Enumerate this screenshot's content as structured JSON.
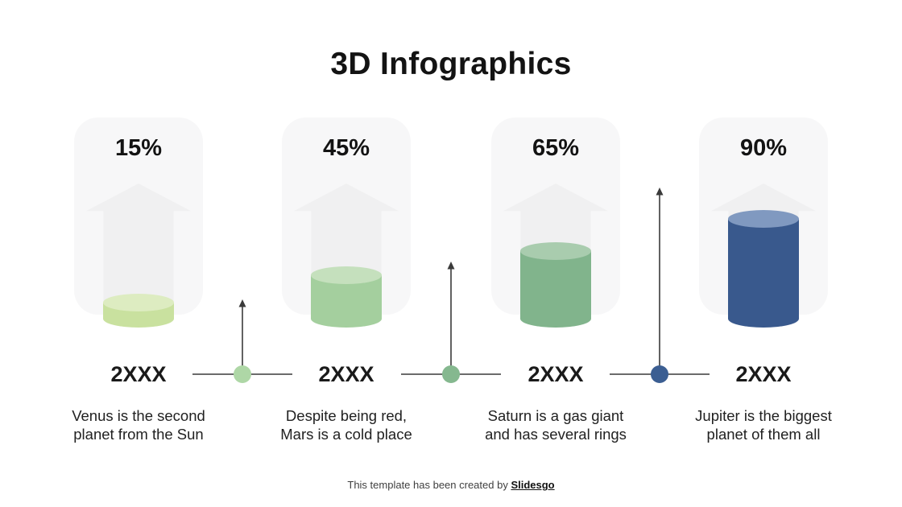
{
  "slide": {
    "title": "3D Infographics",
    "footer": {
      "text": "This template has been created by ",
      "brand": "Slidesgo"
    }
  },
  "columns": [
    {
      "percent": "15%",
      "value": 15,
      "year": "2XXX",
      "description": "Venus is the second\nplanet from the Sun",
      "cylinder": {
        "side_color": "#c9e19f",
        "top_color": "#ddecc1",
        "fill_height": 20
      }
    },
    {
      "percent": "45%",
      "value": 45,
      "year": "2XXX",
      "description": "Despite being red,\nMars is a cold place",
      "cylinder": {
        "side_color": "#a4cf9e",
        "top_color": "#c5e0bd",
        "fill_height": 54
      }
    },
    {
      "percent": "65%",
      "value": 65,
      "year": "2XXX",
      "description": "Saturn is a gas giant\nand has several rings",
      "cylinder": {
        "side_color": "#81b48c",
        "top_color": "#a9ccae",
        "fill_height": 84
      }
    },
    {
      "percent": "90%",
      "value": 90,
      "year": "2XXX",
      "description": "Jupiter is the biggest\nplanet of them all",
      "cylinder": {
        "side_color": "#39598d",
        "top_color": "#8099c0",
        "fill_height": 124
      }
    }
  ],
  "connectors": [
    {
      "dot_color": "#aed7a6",
      "arrow_height": 93
    },
    {
      "dot_color": "#85b88f",
      "arrow_height": 140
    },
    {
      "dot_color": "#3b5e92",
      "arrow_height": 232
    }
  ],
  "style": {
    "card_bg": "#f7f7f8",
    "card_arrow_bg": "#f0f0f1",
    "line_color": "#3a3a3a",
    "text_color": "#212121"
  },
  "chart_data": {
    "type": "bar",
    "title": "3D Infographics",
    "categories": [
      "2XXX",
      "2XXX",
      "2XXX",
      "2XXX"
    ],
    "values": [
      15,
      45,
      65,
      90
    ],
    "unit": "%",
    "value_labels": [
      "15%",
      "45%",
      "65%",
      "90%"
    ],
    "annotations": [
      "Venus is the second planet from the Sun",
      "Despite being red, Mars is a cold place",
      "Saturn is a gas giant and has several rings",
      "Jupiter is the biggest planet of them all"
    ],
    "series_colors": [
      "#c9e19f",
      "#a4cf9e",
      "#81b48c",
      "#39598d"
    ],
    "ylim": [
      0,
      100
    ],
    "grid": false,
    "legend": false
  }
}
